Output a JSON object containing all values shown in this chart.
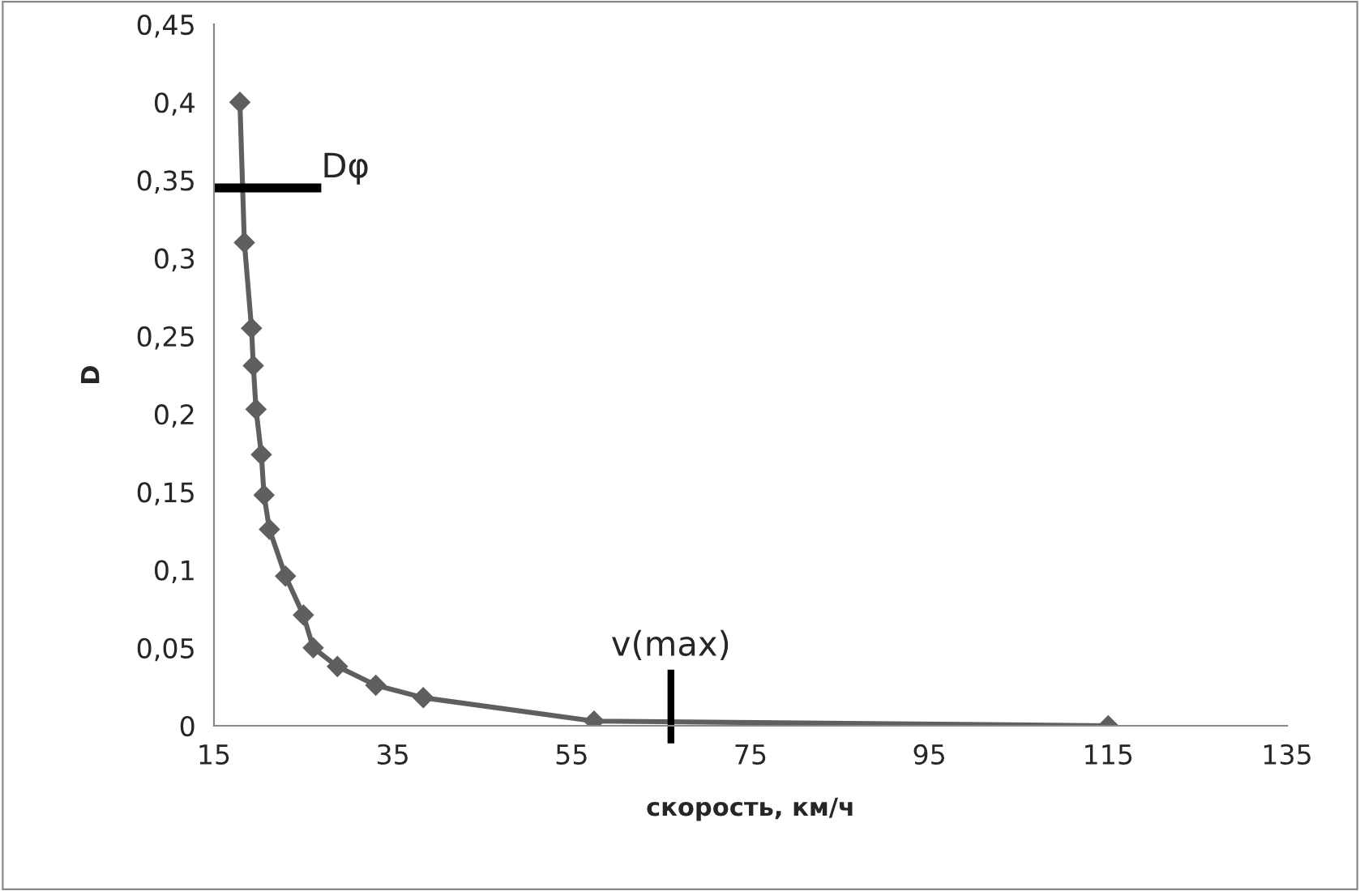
{
  "chart_data": {
    "type": "line",
    "xlabel": "скорость, км/ч",
    "ylabel": "D",
    "series": [
      {
        "color": "#5f5f5f",
        "x": [
          17.9,
          18.4,
          19.2,
          19.4,
          19.7,
          20.3,
          20.6,
          21.2,
          23.0,
          25.0,
          26.1,
          28.8,
          33.1,
          38.4,
          57.5,
          115
        ],
        "values": [
          0.4,
          0.31,
          0.255,
          0.231,
          0.203,
          0.174,
          0.148,
          0.126,
          0.096,
          0.071,
          0.05,
          0.038,
          0.026,
          0.018,
          0.003,
          0
        ]
      }
    ],
    "marker": "diamond",
    "line_style": "solid",
    "grid": false,
    "legend": false,
    "xlim": [
      15,
      135
    ],
    "xticks": [
      15,
      35,
      55,
      75,
      95,
      115,
      135
    ],
    "ylim": [
      0,
      0.45
    ],
    "yticks": [
      0,
      {
        "value": 0.05,
        "label": "0,05"
      },
      {
        "value": 0.1,
        "label": "0,1"
      },
      {
        "value": 0.15,
        "label": "0,15"
      },
      {
        "value": 0.2,
        "label": "0,2"
      },
      {
        "value": 0.25,
        "label": "0,25"
      },
      {
        "value": 0.3,
        "label": "0,3"
      },
      {
        "value": 0.35,
        "label": "0,35"
      },
      {
        "value": 0.4,
        "label": "0,4"
      },
      {
        "value": 0.45,
        "label": "0,45"
      }
    ],
    "ref_lines": [
      {
        "axis": "y",
        "value": 0.345,
        "label": "Dφ",
        "color": "#000000"
      },
      {
        "axis": "x",
        "value": 66.1,
        "label": "v(max)",
        "color": "#000000"
      }
    ]
  }
}
